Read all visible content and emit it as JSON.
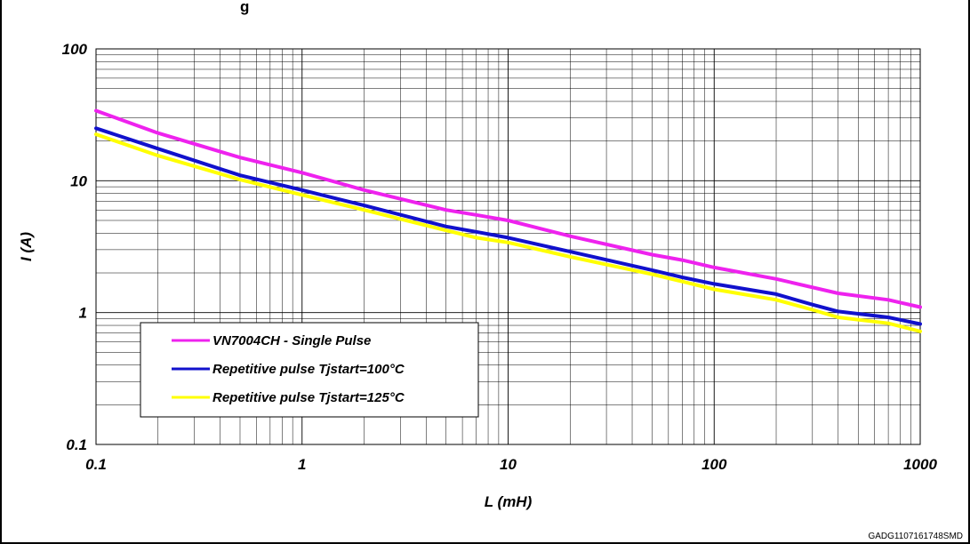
{
  "chart_data": {
    "type": "line",
    "title": "",
    "title_fragment": "g",
    "xlabel": "L (mH)",
    "ylabel": "I (A)",
    "x_scale": "log",
    "y_scale": "log",
    "xlim": [
      0.1,
      1000
    ],
    "ylim": [
      0.1,
      100
    ],
    "x_ticks": [
      "0.1",
      "1",
      "10",
      "100",
      "1000"
    ],
    "y_ticks": [
      "100",
      "10",
      "1",
      "0.1"
    ],
    "grid": true,
    "legend_position": "bottom-left",
    "series": [
      {
        "name": "VN7004CH - Single Pulse",
        "color": "#ee22ee",
        "x": [
          0.1,
          0.2,
          0.5,
          1,
          2,
          5,
          7,
          10,
          20,
          50,
          70,
          100,
          200,
          400,
          700,
          1000
        ],
        "y": [
          34,
          23,
          15,
          11.5,
          8.5,
          6.0,
          5.5,
          5.0,
          3.8,
          2.75,
          2.5,
          2.2,
          1.8,
          1.4,
          1.25,
          1.1
        ]
      },
      {
        "name": "Repetitive pulse Tjstart=100°C",
        "color": "#1111cc",
        "x": [
          0.1,
          0.2,
          0.5,
          1,
          2,
          5,
          7,
          10,
          20,
          50,
          70,
          100,
          200,
          300,
          400,
          700,
          1000
        ],
        "y": [
          25,
          17.5,
          11,
          8.5,
          6.5,
          4.5,
          4.1,
          3.7,
          2.9,
          2.1,
          1.85,
          1.65,
          1.38,
          1.15,
          1.02,
          0.92,
          0.82
        ]
      },
      {
        "name": "Repetitive pulse Tjstart=125°C",
        "color": "#ffff00",
        "x": [
          0.1,
          0.2,
          0.5,
          1,
          2,
          5,
          7,
          10,
          20,
          50,
          70,
          100,
          200,
          300,
          400,
          700,
          1000
        ],
        "y": [
          22.5,
          15.5,
          10.2,
          7.8,
          6.0,
          4.2,
          3.7,
          3.4,
          2.65,
          1.95,
          1.72,
          1.5,
          1.25,
          1.05,
          0.92,
          0.83,
          0.72
        ]
      }
    ]
  },
  "footer": {
    "doc_code": "GADG1107161748SMD"
  }
}
